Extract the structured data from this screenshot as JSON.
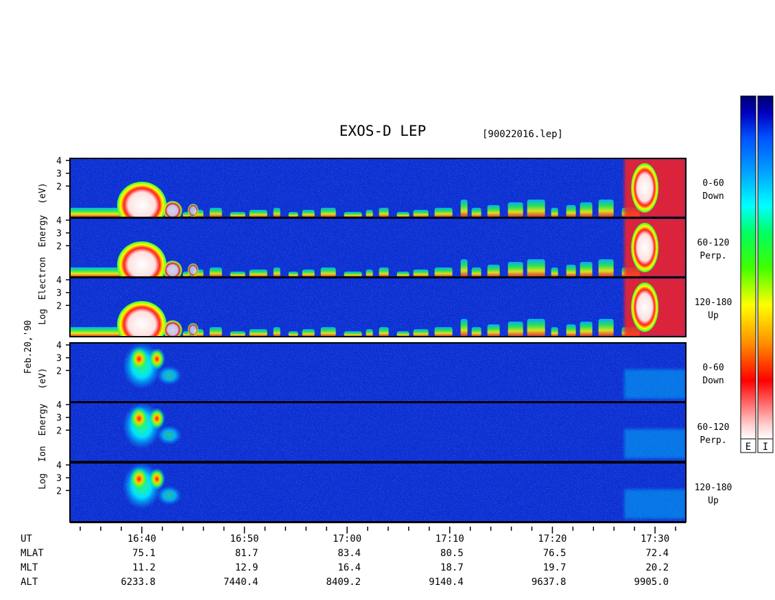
{
  "title": "EXOS-D LEP",
  "file_label": "[90022016.lep]",
  "date_label": "Feb.20,'90",
  "electron_axis": [
    "Log",
    "Electron",
    "Energy",
    "(eV)"
  ],
  "ion_axis": [
    "Log",
    "Ion",
    "Energy",
    "(eV)"
  ],
  "colorbar_letters": [
    "E",
    "I"
  ],
  "colors": {
    "spectrogram_bg": "#0c2fd2",
    "scale": [
      "#000070",
      "#0000c0",
      "#0050ff",
      "#00a0ff",
      "#00ffff",
      "#00ff60",
      "#40ff00",
      "#ffff00",
      "#ff9000",
      "#ff0000",
      "#ffd0d0"
    ]
  },
  "chart_data": {
    "type": "heatmap",
    "title": "EXOS-D LEP",
    "x_axis": {
      "label": "UT",
      "ticks": [
        "16:40",
        "16:50",
        "17:00",
        "17:10",
        "17:20",
        "17:30"
      ],
      "range": [
        "16:33",
        "17:33"
      ]
    },
    "ylim": [
      1,
      4
    ],
    "y_ticks": [
      "4",
      "3",
      "2"
    ],
    "panels": [
      {
        "species": "Electron",
        "pitch_angle": "0-60",
        "direction": "Down"
      },
      {
        "species": "Electron",
        "pitch_angle": "60-120",
        "direction": "Perp."
      },
      {
        "species": "Electron",
        "pitch_angle": "120-180",
        "direction": "Up"
      },
      {
        "species": "Ion",
        "pitch_angle": "0-60",
        "direction": "Down"
      },
      {
        "species": "Ion",
        "pitch_angle": "60-120",
        "direction": "Perp."
      },
      {
        "species": "Ion",
        "pitch_angle": "120-180",
        "direction": "Up"
      }
    ],
    "orbit_table": {
      "rows": [
        "UT",
        "MLAT",
        "MLT",
        "ALT"
      ],
      "columns": [
        {
          "UT": "16:40",
          "MLAT": "75.1",
          "MLT": "11.2",
          "ALT": "6233.8"
        },
        {
          "UT": "16:50",
          "MLAT": "81.7",
          "MLT": "12.9",
          "ALT": "7440.4"
        },
        {
          "UT": "17:00",
          "MLAT": "83.4",
          "MLT": "16.4",
          "ALT": "8409.2"
        },
        {
          "UT": "17:10",
          "MLAT": "80.5",
          "MLT": "18.7",
          "ALT": "9140.4"
        },
        {
          "UT": "17:20",
          "MLAT": "76.5",
          "MLT": "19.7",
          "ALT": "9637.8"
        },
        {
          "UT": "17:30",
          "MLAT": "72.4",
          "MLT": "20.2",
          "ALT": "9905.0"
        }
      ]
    }
  }
}
